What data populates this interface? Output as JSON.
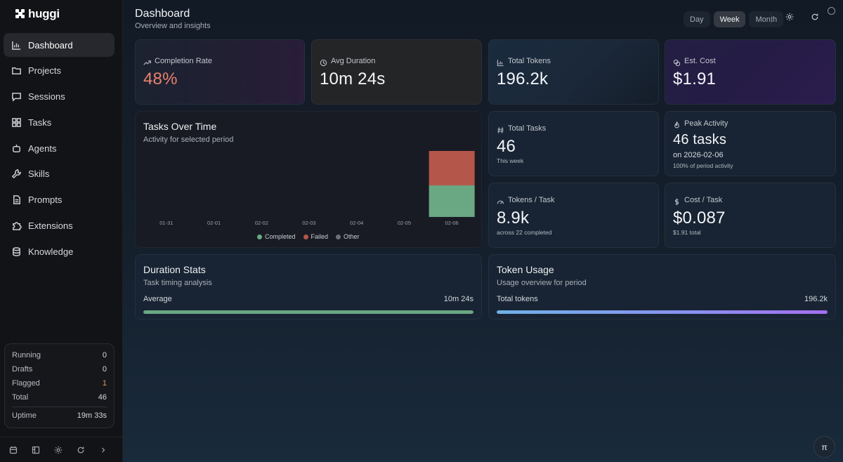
{
  "app": {
    "name": "huggi"
  },
  "sidebar": {
    "items": [
      {
        "label": "Dashboard",
        "icon": "bar-chart-icon",
        "active": true
      },
      {
        "label": "Projects",
        "icon": "folder-icon"
      },
      {
        "label": "Sessions",
        "icon": "chat-icon"
      },
      {
        "label": "Tasks",
        "icon": "grid-icon"
      },
      {
        "label": "Agents",
        "icon": "robot-icon"
      },
      {
        "label": "Skills",
        "icon": "wrench-icon"
      },
      {
        "label": "Prompts",
        "icon": "document-icon"
      },
      {
        "label": "Extensions",
        "icon": "puzzle-icon"
      },
      {
        "label": "Knowledge",
        "icon": "database-icon"
      }
    ],
    "stats": {
      "running": {
        "label": "Running",
        "value": "0"
      },
      "drafts": {
        "label": "Drafts",
        "value": "0"
      },
      "flagged": {
        "label": "Flagged",
        "value": "1"
      },
      "total": {
        "label": "Total",
        "value": "46"
      },
      "uptime": {
        "label": "Uptime",
        "value": "19m 33s"
      }
    },
    "footer_icons": [
      "calendar-icon",
      "board-icon",
      "settings-icon",
      "refresh-icon",
      "chevron-right-icon"
    ]
  },
  "header": {
    "title": "Dashboard",
    "subtitle": "Overview and insights",
    "periods": [
      "Day",
      "Week",
      "Month"
    ],
    "active_period": "Week"
  },
  "cards": {
    "completion_rate": {
      "label": "Completion Rate",
      "value": "48%"
    },
    "avg_duration": {
      "label": "Avg Duration",
      "value": "10m 24s"
    },
    "total_tokens": {
      "label": "Total Tokens",
      "value": "196.2k"
    },
    "est_cost": {
      "label": "Est. Cost",
      "value": "$1.91"
    },
    "total_tasks": {
      "label": "Total Tasks",
      "value": "46",
      "note": "This week"
    },
    "peak_activity": {
      "label": "Peak Activity",
      "value": "46 tasks",
      "date": "on 2026-02-06",
      "note": "100% of period activity"
    },
    "tokens_per_task": {
      "label": "Tokens / Task",
      "value": "8.9k",
      "note": "across 22 completed"
    },
    "cost_per_task": {
      "label": "Cost / Task",
      "value": "$0.087",
      "note": "$1.91 total"
    }
  },
  "chart": {
    "title": "Tasks Over Time",
    "subtitle": "Activity for selected period"
  },
  "chart_data": {
    "type": "bar",
    "stacked": true,
    "categories": [
      "01-31",
      "02-01",
      "02-02",
      "02-03",
      "02-04",
      "02-05",
      "02-06"
    ],
    "series": [
      {
        "name": "Completed",
        "color": "#6aa883",
        "values": [
          0,
          0,
          0,
          0,
          0,
          0,
          22
        ]
      },
      {
        "name": "Failed",
        "color": "#b4574a",
        "values": [
          0,
          0,
          0,
          0,
          0,
          0,
          24
        ]
      },
      {
        "name": "Other",
        "color": "#6b7079",
        "values": [
          0,
          0,
          0,
          0,
          0,
          0,
          0
        ]
      }
    ],
    "ylim": [
      0,
      46
    ],
    "grid": false,
    "legend": "bottom"
  },
  "duration_stats": {
    "title": "Duration Stats",
    "subtitle": "Task timing analysis",
    "row_label": "Average",
    "row_value": "10m 24s",
    "fill_fraction": 1.0
  },
  "token_usage": {
    "title": "Token Usage",
    "subtitle": "Usage overview for period",
    "row_label": "Total tokens",
    "row_value": "196.2k",
    "fill_fraction": 1.0
  },
  "fab": {
    "label": "π",
    "icon": "assistant-icon"
  },
  "colors": {
    "accent_rate": "#e8826f",
    "flagged": "#e0a04a",
    "completed": "#6aa883",
    "failed": "#b4574a"
  }
}
